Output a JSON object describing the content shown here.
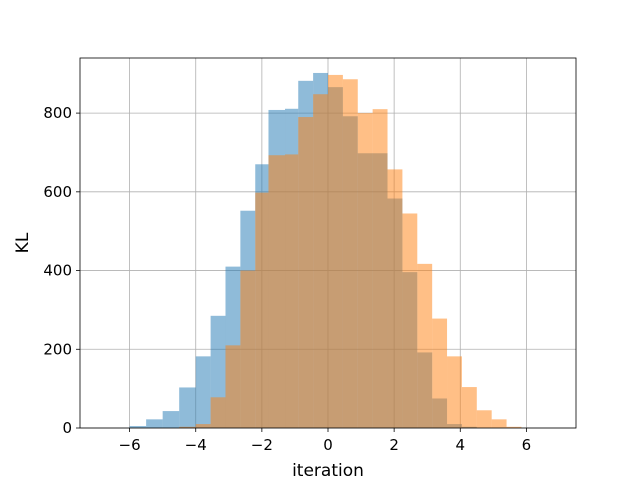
{
  "chart_data": {
    "type": "histogram",
    "title": "",
    "xlabel": "iteration",
    "ylabel": "KL",
    "xlim": [
      -7.5,
      7.5
    ],
    "ylim": [
      0,
      940
    ],
    "x_ticks": [
      -6,
      -4,
      -2,
      0,
      2,
      4,
      6
    ],
    "x_tick_labels": [
      "−6",
      "−4",
      "−2",
      "0",
      "2",
      "4",
      "6"
    ],
    "y_ticks": [
      0,
      200,
      400,
      600,
      800
    ],
    "y_tick_labels": [
      "0",
      "200",
      "400",
      "600",
      "800"
    ],
    "grid": true,
    "legend": "none",
    "series": [
      {
        "color": "#1f77b4",
        "opacity": 0.5,
        "bins": [
          [
            -6.0,
            -5.5,
            5
          ],
          [
            -5.5,
            -5.0,
            22
          ],
          [
            -5.0,
            -4.5,
            43
          ],
          [
            -4.5,
            -4.0,
            103
          ],
          [
            -4.0,
            -3.55,
            182
          ],
          [
            -3.55,
            -3.1,
            285
          ],
          [
            -3.1,
            -2.65,
            410
          ],
          [
            -2.65,
            -2.2,
            552
          ],
          [
            -2.2,
            -1.8,
            670
          ],
          [
            -1.8,
            -1.3,
            808
          ],
          [
            -1.3,
            -0.9,
            811
          ],
          [
            -0.9,
            -0.45,
            882
          ],
          [
            -0.45,
            0.0,
            902
          ],
          [
            0.0,
            0.45,
            866
          ],
          [
            0.45,
            0.9,
            792
          ],
          [
            0.9,
            1.35,
            698
          ],
          [
            1.35,
            1.8,
            698
          ],
          [
            1.8,
            2.25,
            583
          ],
          [
            2.25,
            2.7,
            396
          ],
          [
            2.7,
            3.15,
            192
          ],
          [
            3.15,
            3.6,
            75
          ],
          [
            3.6,
            4.05,
            10
          ],
          [
            4.05,
            4.5,
            3
          ]
        ]
      },
      {
        "color": "#ff7f0e",
        "opacity": 0.5,
        "bins": [
          [
            -4.5,
            -4.0,
            3
          ],
          [
            -4.0,
            -3.55,
            10
          ],
          [
            -3.55,
            -3.1,
            78
          ],
          [
            -3.1,
            -2.65,
            210
          ],
          [
            -2.65,
            -2.2,
            400
          ],
          [
            -2.2,
            -1.8,
            598
          ],
          [
            -1.8,
            -1.3,
            693
          ],
          [
            -1.3,
            -0.9,
            695
          ],
          [
            -0.9,
            -0.45,
            790
          ],
          [
            -0.45,
            0.0,
            848
          ],
          [
            0.0,
            0.45,
            897
          ],
          [
            0.45,
            0.9,
            886
          ],
          [
            0.9,
            1.35,
            800
          ],
          [
            1.35,
            1.8,
            810
          ],
          [
            1.8,
            2.25,
            657
          ],
          [
            2.25,
            2.7,
            545
          ],
          [
            2.7,
            3.15,
            417
          ],
          [
            3.15,
            3.6,
            278
          ],
          [
            3.6,
            4.05,
            182
          ],
          [
            4.05,
            4.5,
            104
          ],
          [
            4.5,
            4.95,
            45
          ],
          [
            4.95,
            5.4,
            22
          ],
          [
            5.4,
            5.85,
            3
          ]
        ]
      }
    ]
  }
}
